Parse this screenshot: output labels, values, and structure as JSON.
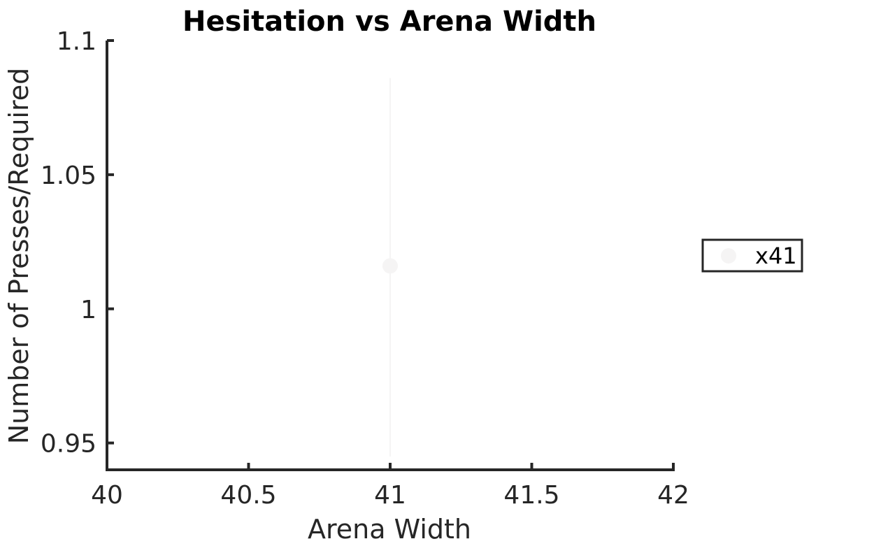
{
  "chart_data": {
    "type": "scatter",
    "title": "Hesitation vs Arena Width",
    "xlabel": "Arena Width",
    "ylabel": "Number of Presses/Required",
    "xlim": [
      40,
      42
    ],
    "ylim": [
      0.94,
      1.1
    ],
    "xticks": [
      40,
      40.5,
      41,
      41.5,
      42
    ],
    "xtick_labels": [
      "40",
      "40.5",
      "41",
      "41.5",
      "42"
    ],
    "yticks": [
      0.95,
      1,
      1.05,
      1.1
    ],
    "ytick_labels": [
      "0.95",
      "1",
      "1.05",
      "1.1"
    ],
    "grid": false,
    "legend": "outside-right",
    "series": [
      {
        "name": "x41",
        "color": "#f5f4f4",
        "points": [
          {
            "x": 41,
            "y": 1.016,
            "err_low": 0.945,
            "err_high": 1.086
          }
        ]
      }
    ]
  }
}
